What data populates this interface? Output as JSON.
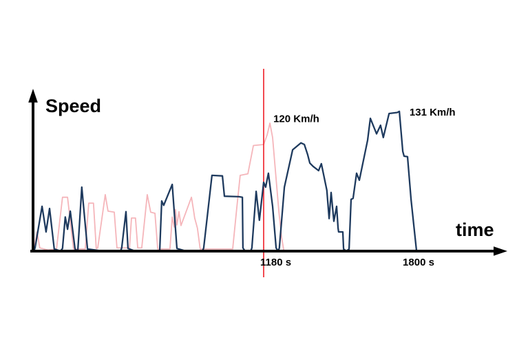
{
  "page": {
    "background_color": "#ffffff",
    "description_labels": {
      "y_axis_title": "Speed",
      "x_axis_title": "time"
    }
  },
  "colors": {
    "axis": "#000000",
    "text": "#000000",
    "reference_line": "#ee1c25",
    "series_pink": "#f5b5ba",
    "series_navy": "#1e3a5e"
  },
  "chart_data": {
    "type": "line",
    "title": "",
    "xlabel": "time",
    "ylabel": "Speed",
    "x_unit": "s",
    "y_unit": "Km/h",
    "xlim": [
      257,
      1900
    ],
    "ylim": [
      0,
      140
    ],
    "grid": false,
    "legend_position": "none",
    "x_ticks": [
      {
        "t": 1180,
        "label": "1180 s"
      },
      {
        "t": 1800,
        "label": "1800 s"
      }
    ],
    "marker_line": {
      "t": 1180,
      "color": "#ee1c25"
    },
    "annotations": [
      {
        "label": "120 Km/h",
        "t": 1219,
        "v": 121,
        "series": "trip-1-pink"
      },
      {
        "label": "131 Km/h",
        "t": 1764,
        "v": 127,
        "series": "trip-2-navy"
      }
    ],
    "series": [
      {
        "name": "trip-1-pink",
        "color": "#f5b5ba",
        "peak_kmh": 120,
        "points": [
          [
            257,
            1.5
          ],
          [
            262,
            3
          ],
          [
            273,
            18
          ],
          [
            284,
            3
          ],
          [
            317,
            1
          ],
          [
            351,
            2
          ],
          [
            375,
            50.5
          ],
          [
            395,
            50.5
          ],
          [
            419,
            2
          ],
          [
            466,
            2
          ],
          [
            480,
            45
          ],
          [
            499,
            45
          ],
          [
            510,
            2.5
          ],
          [
            516,
            3
          ],
          [
            546,
            53
          ],
          [
            557,
            37.5
          ],
          [
            582,
            36.5
          ],
          [
            593,
            3
          ],
          [
            643,
            3
          ],
          [
            651,
            31
          ],
          [
            667,
            31
          ],
          [
            676,
            3
          ],
          [
            692,
            3
          ],
          [
            714,
            53
          ],
          [
            728,
            36.5
          ],
          [
            745,
            35.5
          ],
          [
            756,
            2
          ],
          [
            805,
            2
          ],
          [
            814,
            32
          ],
          [
            822,
            22.5
          ],
          [
            827,
            39
          ],
          [
            833,
            24.5
          ],
          [
            841,
            37
          ],
          [
            849,
            24
          ],
          [
            891,
            50.5
          ],
          [
            899,
            39
          ],
          [
            904,
            31
          ],
          [
            915,
            21.5
          ],
          [
            926,
            2
          ],
          [
            1056,
            2
          ],
          [
            1073,
            42
          ],
          [
            1086,
            71
          ],
          [
            1117,
            72.5
          ],
          [
            1139,
            99
          ],
          [
            1180,
            100
          ],
          [
            1194,
            109
          ],
          [
            1205,
            120
          ],
          [
            1216,
            106.5
          ],
          [
            1241,
            37
          ],
          [
            1252,
            13
          ],
          [
            1260,
            1.5
          ]
        ]
      },
      {
        "name": "trip-2-navy",
        "color": "#1e3a5e",
        "peak_kmh": 131,
        "points": [
          [
            260,
            0
          ],
          [
            265,
            3
          ],
          [
            293,
            42
          ],
          [
            309,
            18
          ],
          [
            323,
            40
          ],
          [
            342,
            2
          ],
          [
            367,
            0
          ],
          [
            375,
            2.5
          ],
          [
            386,
            32
          ],
          [
            395,
            20.5
          ],
          [
            406,
            37.5
          ],
          [
            425,
            2
          ],
          [
            436,
            0
          ],
          [
            452,
            60
          ],
          [
            475,
            2
          ],
          [
            538,
            0
          ],
          [
            607,
            0
          ],
          [
            612,
            3
          ],
          [
            629,
            37
          ],
          [
            637,
            2.5
          ],
          [
            665,
            0
          ],
          [
            764,
            0
          ],
          [
            772,
            47
          ],
          [
            780,
            43
          ],
          [
            814,
            62.5
          ],
          [
            833,
            2.5
          ],
          [
            869,
            0
          ],
          [
            935,
            0
          ],
          [
            940,
            3
          ],
          [
            973,
            71
          ],
          [
            1015,
            70.5
          ],
          [
            1023,
            51.5
          ],
          [
            1081,
            51
          ],
          [
            1095,
            50.5
          ],
          [
            1097,
            3
          ],
          [
            1106,
            0
          ],
          [
            1128,
            0
          ],
          [
            1133,
            3
          ],
          [
            1150,
            56
          ],
          [
            1163,
            29
          ],
          [
            1180,
            64.5
          ],
          [
            1188,
            60
          ],
          [
            1199,
            73
          ],
          [
            1216,
            42
          ],
          [
            1230,
            3
          ],
          [
            1238,
            0
          ],
          [
            1243,
            3
          ],
          [
            1263,
            60
          ],
          [
            1296,
            95
          ],
          [
            1329,
            101.5
          ],
          [
            1343,
            100
          ],
          [
            1356,
            90.5
          ],
          [
            1365,
            82.5
          ],
          [
            1378,
            79.5
          ],
          [
            1400,
            75.5
          ],
          [
            1411,
            82
          ],
          [
            1433,
            57
          ],
          [
            1442,
            30.5
          ],
          [
            1450,
            55
          ],
          [
            1461,
            28
          ],
          [
            1472,
            42
          ],
          [
            1478,
            21.5
          ],
          [
            1480,
            18
          ],
          [
            1497,
            18
          ],
          [
            1500,
            2
          ],
          [
            1511,
            0
          ],
          [
            1522,
            2
          ],
          [
            1530,
            48.5
          ],
          [
            1538,
            49.5
          ],
          [
            1552,
            73
          ],
          [
            1563,
            66.5
          ],
          [
            1585,
            91.5
          ],
          [
            1596,
            104
          ],
          [
            1607,
            124.5
          ],
          [
            1632,
            110
          ],
          [
            1648,
            118
          ],
          [
            1659,
            106.5
          ],
          [
            1682,
            129
          ],
          [
            1715,
            130
          ],
          [
            1723,
            131
          ],
          [
            1737,
            93.5
          ],
          [
            1742,
            89
          ],
          [
            1756,
            88.5
          ],
          [
            1770,
            48.5
          ],
          [
            1792,
            0
          ]
        ]
      }
    ]
  }
}
